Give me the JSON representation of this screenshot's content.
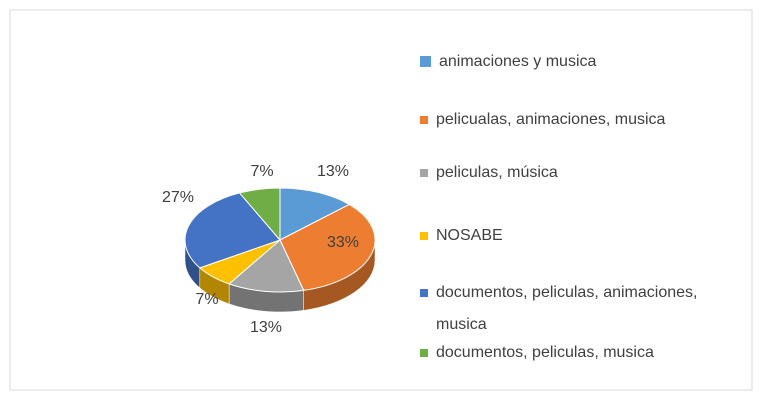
{
  "chart_data": {
    "type": "pie",
    "categories": [
      "animaciones y musica",
      "pelicualas, animaciones, musica",
      "peliculas, música",
      "NOSABE",
      "documentos, peliculas, animaciones, musica",
      "documentos, peliculas, musica"
    ],
    "values": [
      13,
      33,
      13,
      7,
      27,
      7
    ],
    "value_labels": [
      "13%",
      "33%",
      "13%",
      "7%",
      "27%",
      "7%"
    ],
    "colors": [
      "#5b9bd5",
      "#ed7d31",
      "#a5a5a5",
      "#ffc000",
      "#4472c4",
      "#70ad47"
    ],
    "legend": "right"
  }
}
